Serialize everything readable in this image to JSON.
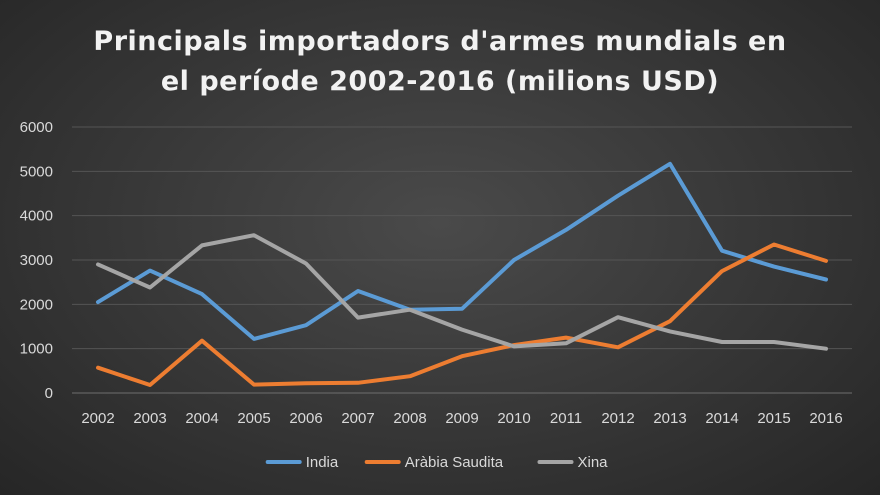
{
  "chart_data": {
    "type": "line",
    "title_line1": "Principals importadors d'armes mundials en",
    "title_line2": "el període 2002-2016 (milions USD)",
    "categories": [
      "2002",
      "2003",
      "2004",
      "2005",
      "2006",
      "2007",
      "2008",
      "2009",
      "2010",
      "2011",
      "2012",
      "2013",
      "2014",
      "2015",
      "2016"
    ],
    "ylim": [
      0,
      6000
    ],
    "yticks": [
      0,
      1000,
      2000,
      3000,
      4000,
      5000,
      6000
    ],
    "grid": true,
    "legend_position": "bottom",
    "series": [
      {
        "name": "India",
        "color": "#5b9bd5",
        "values": [
          2050,
          2760,
          2230,
          1220,
          1530,
          2300,
          1880,
          1900,
          3000,
          3680,
          4450,
          5170,
          3210,
          2850,
          2560
        ]
      },
      {
        "name": "Aràbia Saudita",
        "color": "#ed7d31",
        "values": [
          570,
          180,
          1180,
          190,
          220,
          230,
          380,
          830,
          1080,
          1250,
          1030,
          1620,
          2750,
          3350,
          2980
        ]
      },
      {
        "name": "Xina",
        "color": "#a5a5a5",
        "values": [
          2900,
          2380,
          3330,
          3560,
          2920,
          1700,
          1880,
          1430,
          1050,
          1120,
          1710,
          1390,
          1150,
          1150,
          1000
        ]
      }
    ]
  }
}
